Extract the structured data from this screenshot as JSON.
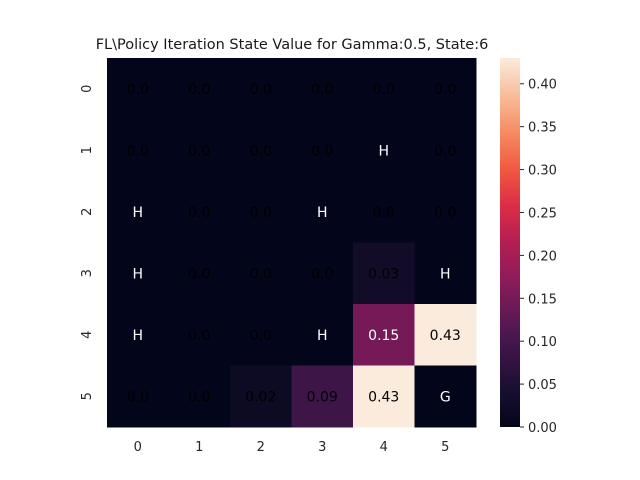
{
  "chart_data": {
    "type": "heatmap",
    "title": "FL\\Policy Iteration State Value for Gamma:0.5, State:6",
    "xlabel": "",
    "ylabel": "",
    "x_tick_labels": [
      "0",
      "1",
      "2",
      "3",
      "4",
      "5"
    ],
    "y_tick_labels": [
      "0",
      "1",
      "2",
      "3",
      "4",
      "5"
    ],
    "values": [
      [
        0.0,
        0.0,
        0.0,
        0.0,
        0.0,
        0.0
      ],
      [
        0.0,
        0.0,
        0.0,
        0.0,
        0.0,
        0.0
      ],
      [
        0.0,
        0.0,
        0.0,
        0.0,
        0.0,
        0.0
      ],
      [
        0.0,
        0.0,
        0.0,
        0.0,
        0.03,
        0.0
      ],
      [
        0.0,
        0.0,
        0.0,
        0.0,
        0.15,
        0.43
      ],
      [
        0.0,
        0.0,
        0.02,
        0.09,
        0.43,
        0.0
      ]
    ],
    "annotations": [
      [
        "0.0",
        "0.0",
        "0.0",
        "0.0",
        "0.0",
        "0.0"
      ],
      [
        "0.0",
        "0.0",
        "0.0",
        "0.0",
        "H",
        "0.0"
      ],
      [
        "H",
        "0.0",
        "0.0",
        "H",
        "0.0",
        "0.0"
      ],
      [
        "H",
        "0.0",
        "0.0",
        "0.0",
        "0.03",
        "H"
      ],
      [
        "H",
        "0.0",
        "0.0",
        "H",
        "0.15",
        "0.43"
      ],
      [
        "0.0",
        "0.0",
        "0.02",
        "0.09",
        "0.43",
        "G"
      ]
    ],
    "colorbar": {
      "min": 0.0,
      "max": 0.43,
      "ticks": [
        0.0,
        0.05,
        0.1,
        0.15,
        0.2,
        0.25,
        0.3,
        0.35,
        0.4
      ],
      "tick_labels": [
        "0.00",
        "0.05",
        "0.10",
        "0.15",
        "0.20",
        "0.25",
        "0.30",
        "0.35",
        "0.40"
      ],
      "colormap": "rocket"
    },
    "grid": false
  }
}
